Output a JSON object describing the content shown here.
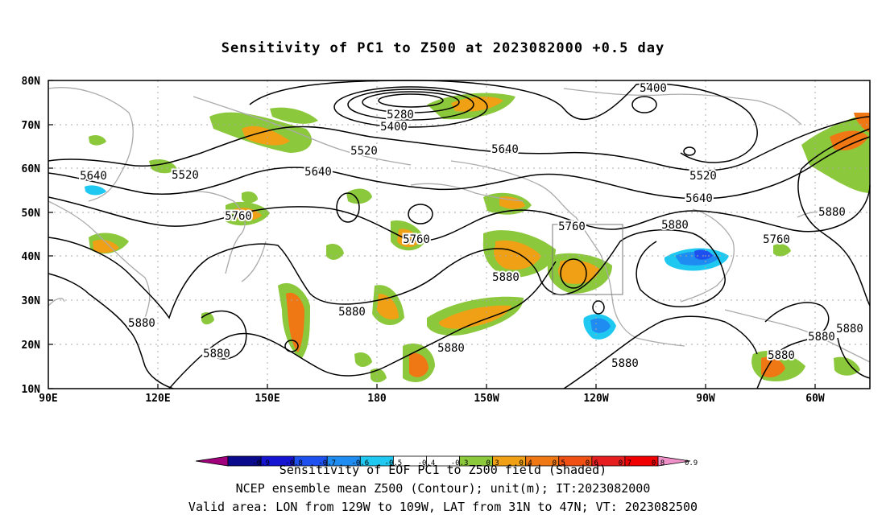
{
  "title": "Sensitivity of PC1 to Z500 at 2023082000 +0.5 day",
  "lat_labels": [
    "80N",
    "70N",
    "60N",
    "50N",
    "40N",
    "30N",
    "20N",
    "10N"
  ],
  "lon_labels": [
    "90E",
    "120E",
    "150E",
    "180",
    "150W",
    "120W",
    "90W",
    "60W"
  ],
  "contour_labels": [
    {
      "text": "5400"
    },
    {
      "text": "5280"
    },
    {
      "text": "5400"
    },
    {
      "text": "5520"
    },
    {
      "text": "5640"
    },
    {
      "text": "5640"
    },
    {
      "text": "5520"
    },
    {
      "text": "5640"
    },
    {
      "text": "5520"
    },
    {
      "text": "5640"
    },
    {
      "text": "5760"
    },
    {
      "text": "5760"
    },
    {
      "text": "5760"
    },
    {
      "text": "5880"
    },
    {
      "text": "5760"
    },
    {
      "text": "5880"
    },
    {
      "text": "5880"
    },
    {
      "text": "5880"
    },
    {
      "text": "5880"
    },
    {
      "text": "5880"
    },
    {
      "text": "5880"
    },
    {
      "text": "5880"
    },
    {
      "text": "5880"
    },
    {
      "text": "5880"
    },
    {
      "text": "5880"
    }
  ],
  "colorbar": {
    "colors": [
      "#a0007c",
      "#0a0a8c",
      "#1414d2",
      "#1e50f0",
      "#1e8cf0",
      "#1ec8f0",
      "#ffffff",
      "#ffffff",
      "#8cc83c",
      "#f0a014",
      "#f07814",
      "#f05014",
      "#e61e1e",
      "#f00000",
      "#f090c8"
    ],
    "tick_labels": [
      "-0.9",
      "-0.8",
      "-0.7",
      "-0.6",
      "-0.5",
      "-0.4",
      "-0.3",
      "0.3",
      "0.4",
      "0.5",
      "0.6",
      "0.7",
      "0.8",
      "0.9"
    ]
  },
  "caption_line1": "Sensitivity of EOF PC1 to Z500 field (Shaded)",
  "caption_line2": "NCEP ensemble mean Z500 (Contour); unit(m); IT:2023082000",
  "caption_line3": "Valid area: LON from 129W to 109W, LAT from 31N to 47N; VT: 2023082500"
}
